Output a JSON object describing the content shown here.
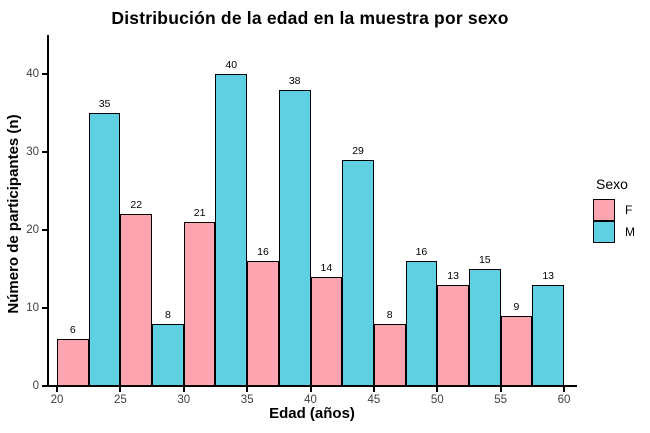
{
  "chart_data": {
    "type": "bar",
    "title": "Distribución de la edad en la muestra por sexo",
    "xlabel": "Edad (años)",
    "ylabel": "Número de participantes (n)",
    "categories": [
      "20-25",
      "25-30",
      "30-35",
      "35-40",
      "40-45",
      "45-50",
      "50-55",
      "55-60"
    ],
    "bin_width": 5,
    "bar_width": 2.5,
    "series": [
      {
        "name": "F",
        "color": "#FCA5B0",
        "values": [
          6,
          22,
          21,
          16,
          14,
          8,
          13,
          9
        ]
      },
      {
        "name": "M",
        "color": "#5FD0E1",
        "values": [
          35,
          8,
          40,
          38,
          29,
          16,
          15,
          13
        ]
      }
    ],
    "x_ticks": [
      20,
      25,
      30,
      35,
      40,
      45,
      50,
      55,
      60
    ],
    "y_ticks": [
      0,
      10,
      20,
      30,
      40
    ],
    "xlim": [
      20,
      60
    ],
    "ylim": [
      0,
      45
    ],
    "grid": false,
    "value_labels": true,
    "bar_border_color": "#000000",
    "axis_color": "#000000",
    "tick_label_color": "#404040",
    "legend": {
      "title": "Sexo",
      "position": "right"
    }
  }
}
